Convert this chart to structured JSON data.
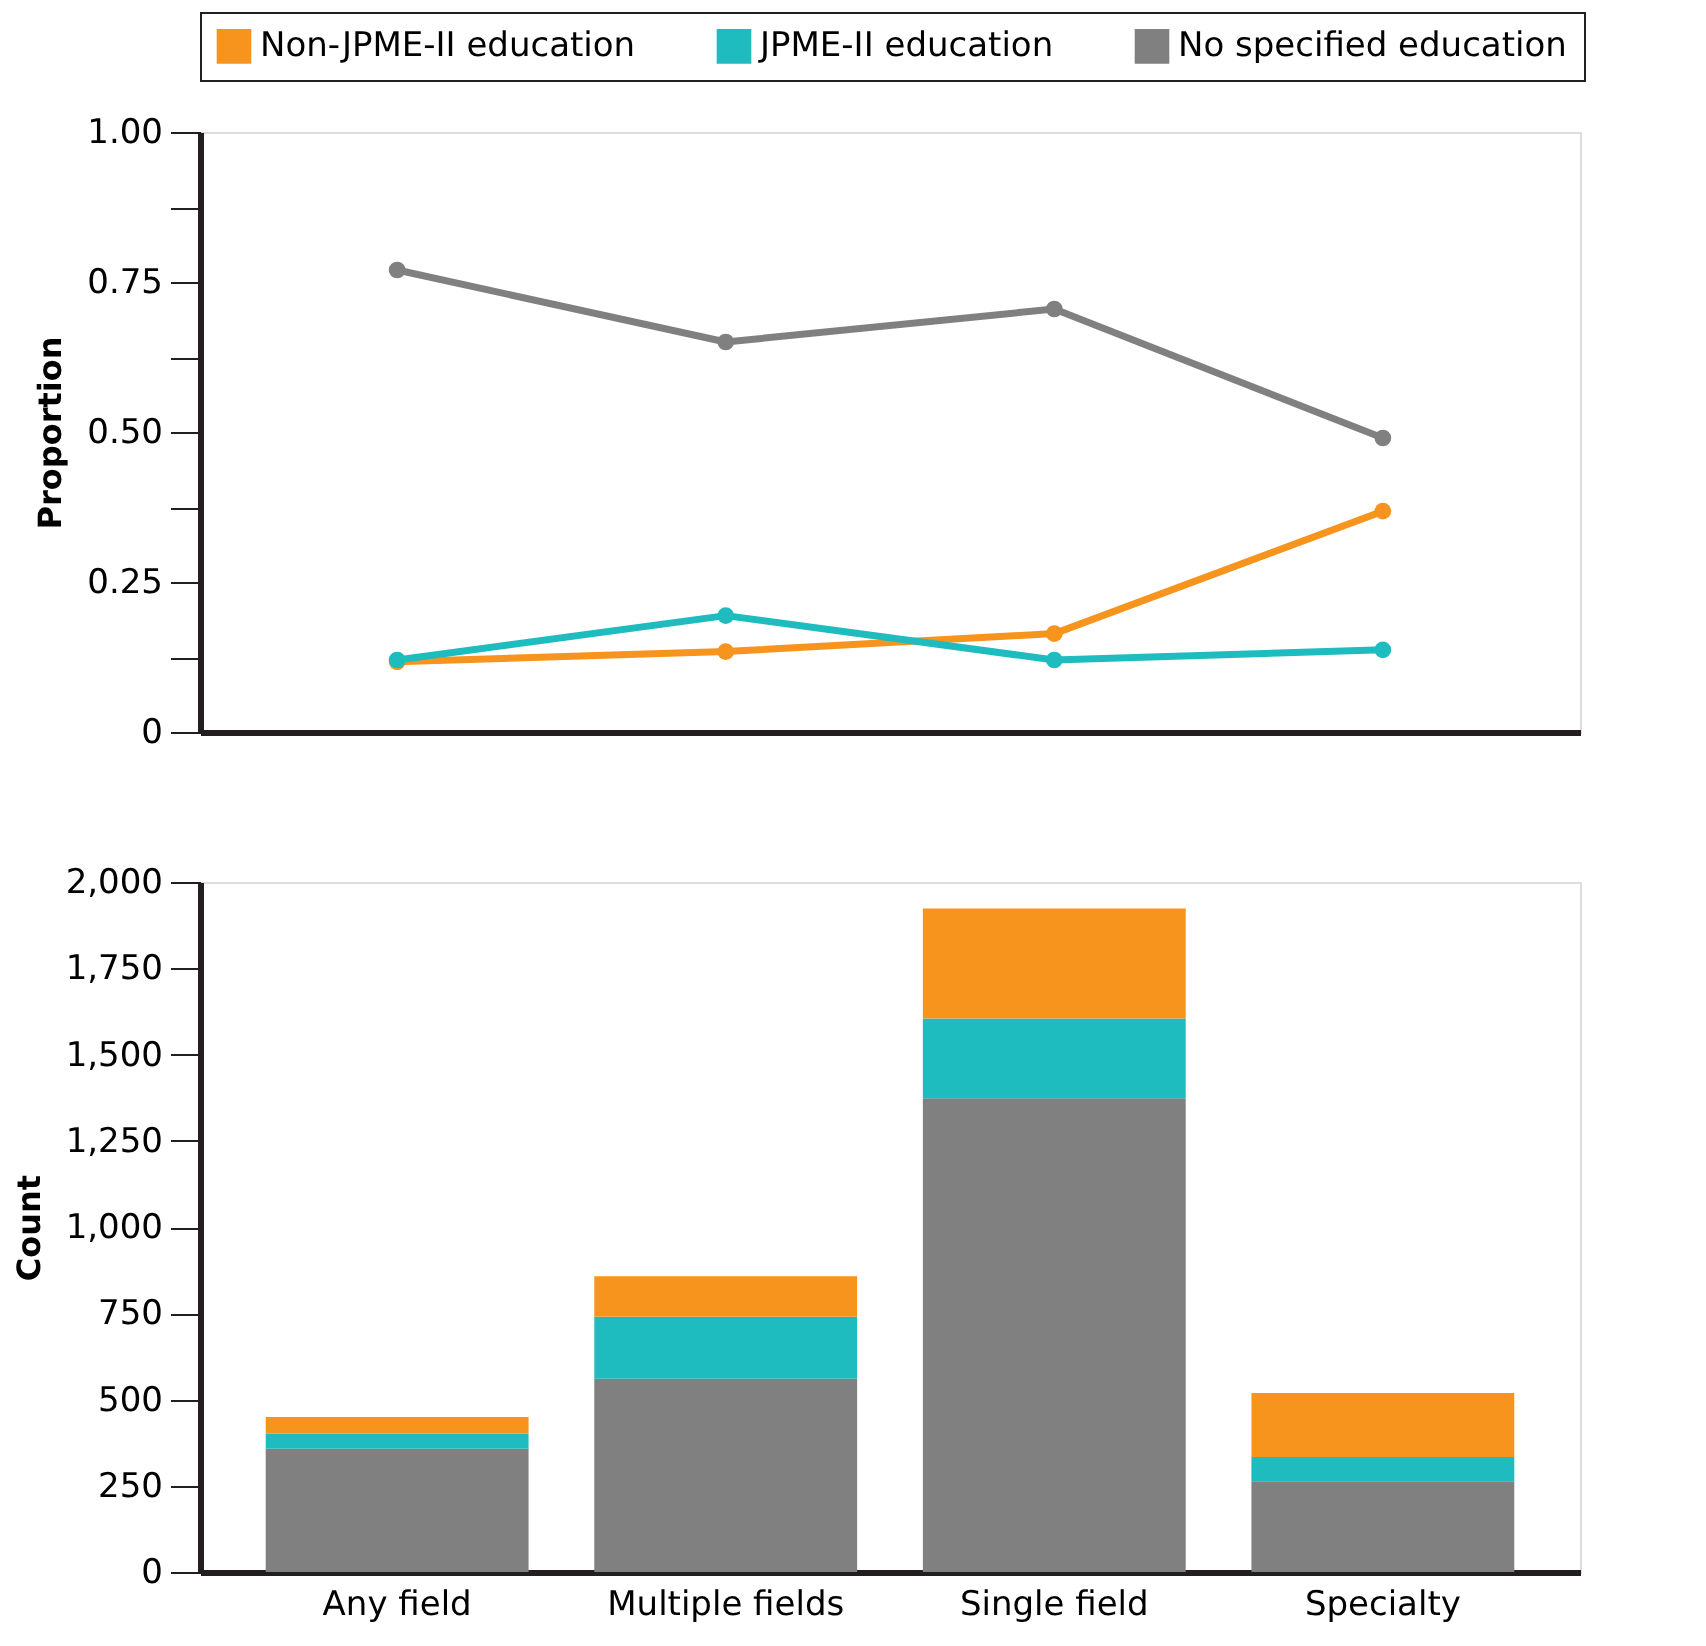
{
  "chart_data": [
    {
      "type": "line",
      "ylabel": "Proportion",
      "categories": [
        null,
        null,
        null,
        null
      ],
      "ylim": [
        0,
        1
      ],
      "yticks": [
        0,
        {
          "value": 0.125,
          "label": null
        },
        0.25,
        {
          "value": 0.375,
          "label": null
        },
        {
          "value": 0.5,
          "label": "0.50"
        },
        {
          "value": 0.625,
          "label": null
        },
        0.75,
        {
          "value": 0.875,
          "label": null
        },
        {
          "value": 1,
          "label": "1.00"
        }
      ],
      "grid": false,
      "legend": "top",
      "marker": "circle",
      "line_style": "solid",
      "series": [
        {
          "name": "No specified education",
          "color": "#808080",
          "values": [
            0.77,
            0.65,
            0.705,
            0.49
          ]
        },
        {
          "name": "JPME-II education",
          "color": "#1fbcbf",
          "values": [
            0.12,
            0.194,
            0.12,
            0.137
          ]
        },
        {
          "name": "Non-JPME-II education",
          "color": "#f7941d",
          "values": [
            0.117,
            0.134,
            0.164,
            0.368
          ]
        }
      ]
    },
    {
      "type": "bar",
      "ylabel": "Count",
      "categories": [
        "Any field",
        "Multiple fields",
        "Single field",
        "Specialty"
      ],
      "stacked": true,
      "ylim": [
        0,
        2000
      ],
      "yticks": [
        0,
        250,
        500,
        750,
        {
          "value": 1000,
          "label": "1,000"
        },
        {
          "value": 1250,
          "label": "1,250"
        },
        {
          "value": 1500,
          "label": "1,500"
        },
        {
          "value": 1750,
          "label": "1,750"
        },
        {
          "value": 2000,
          "label": "2,000"
        }
      ],
      "grid": false,
      "legend": false,
      "series": [
        {
          "name": "No specified education",
          "color": "#808080",
          "values": [
            357,
            560,
            1373,
            263
          ]
        },
        {
          "name": "JPME-II education",
          "color": "#1fbcbf",
          "values": [
            44,
            180,
            231,
            70
          ]
        },
        {
          "name": "Non-JPME-II education",
          "color": "#f7941d",
          "values": [
            48,
            117,
            319,
            186
          ]
        }
      ]
    }
  ]
}
